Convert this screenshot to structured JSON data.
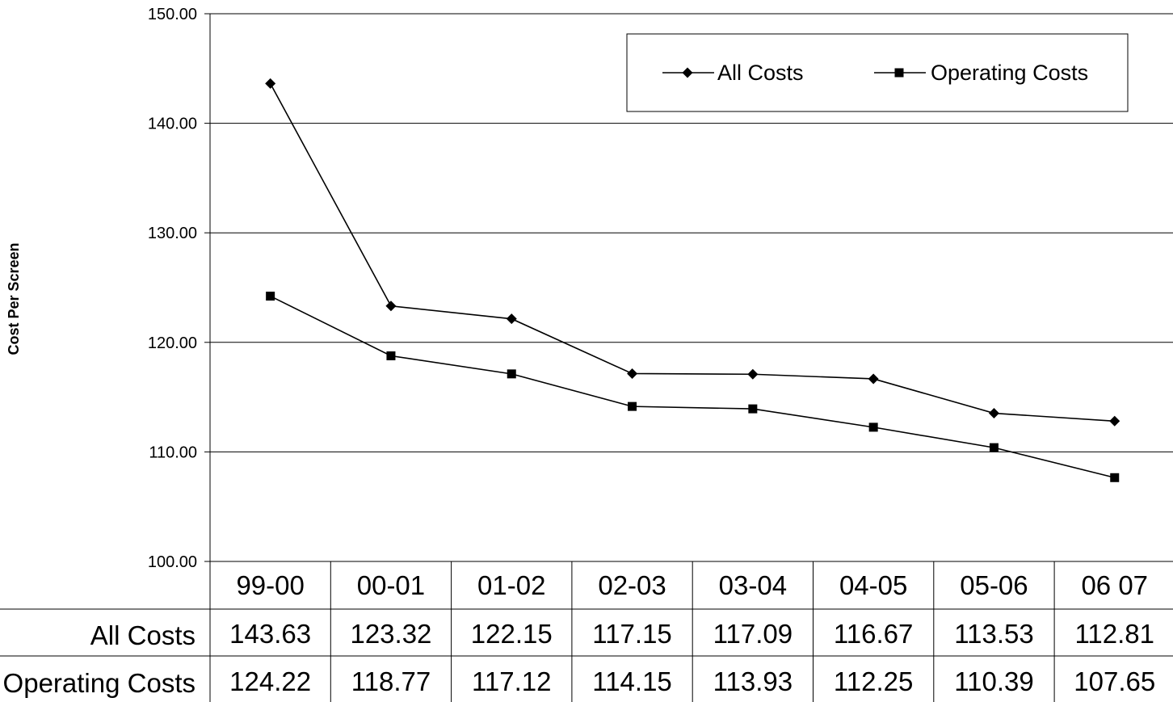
{
  "chart_data": {
    "type": "line",
    "ylabel": "Cost Per Screen",
    "xlabel": "",
    "ylim": [
      100,
      150
    ],
    "yticks": [
      "100.00",
      "110.00",
      "120.00",
      "130.00",
      "140.00",
      "150.00"
    ],
    "categories": [
      "99-00",
      "00-01",
      "01-02",
      "02-03",
      "03-04",
      "04-05",
      "05-06",
      "06 07"
    ],
    "series": [
      {
        "name": "All Costs",
        "marker": "diamond",
        "values": [
          143.63,
          123.32,
          122.15,
          117.15,
          117.09,
          116.67,
          113.53,
          112.81
        ],
        "labels": [
          "143.63",
          "123.32",
          "122.15",
          "117.15",
          "117.09",
          "116.67",
          "113.53",
          "112.81"
        ]
      },
      {
        "name": "Operating Costs",
        "marker": "square",
        "values": [
          124.22,
          118.77,
          117.12,
          114.15,
          113.93,
          112.25,
          110.39,
          107.65
        ],
        "labels": [
          "124.22",
          "118.77",
          "117.12",
          "114.15",
          "113.93",
          "112.25",
          "110.39",
          "107.65"
        ]
      }
    ],
    "grid": true,
    "legend": "top-right",
    "data_table": true,
    "colors": {
      "line": "#000000",
      "grid": "#000000",
      "background": "#ffffff"
    }
  }
}
